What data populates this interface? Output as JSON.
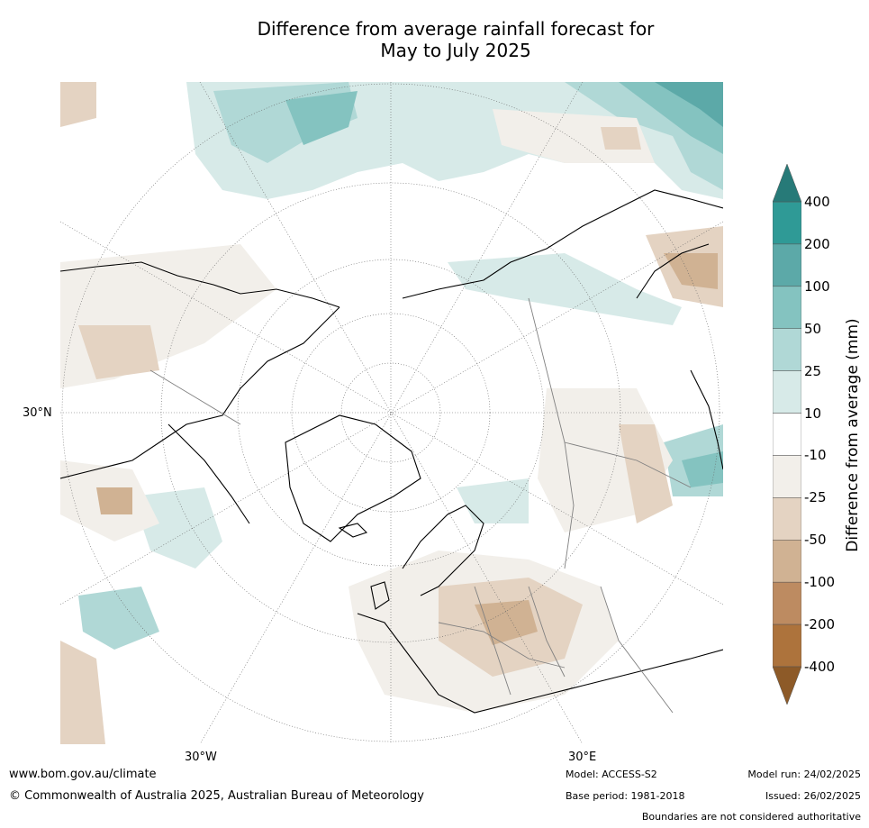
{
  "title": {
    "line1": "Difference from average rainfall forecast for",
    "line2": "May to July 2025"
  },
  "map": {
    "gridlabels": {
      "lat30": "30°N",
      "lon_w": "30°W",
      "lon_e": "30°E"
    },
    "colors": {
      "ocean_bg": "#ffffff",
      "coast": "#000000",
      "border": "#808080",
      "wet_10_25": "#d7eae8",
      "wet_25_50": "#b0d8d6",
      "wet_50_100": "#84c3c0",
      "wet_100_200": "#5ca9a8",
      "wet_200_400": "#2f9a96",
      "wet_over": "#277a78",
      "dry_10_25": "#f2efea",
      "dry_25_50": "#e4d3c2",
      "dry_50_100": "#d0b293",
      "dry_100_200": "#bd8b61",
      "dry_200_400": "#ad733c",
      "dry_under": "#8d5a28"
    }
  },
  "colorbar": {
    "title": "Difference from average (mm)",
    "ticks": [
      "400",
      "200",
      "100",
      "50",
      "25",
      "10",
      "-10",
      "-25",
      "-50",
      "-100",
      "-200",
      "-400"
    ],
    "bands": [
      "#2f9a96",
      "#5ca9a8",
      "#84c3c0",
      "#b0d8d6",
      "#d7eae8",
      "#ffffff",
      "#f2efea",
      "#e4d3c2",
      "#d0b293",
      "#bd8b61",
      "#ad733c"
    ],
    "arrow_top": "#277a78",
    "arrow_bottom": "#8d5a28"
  },
  "footer": {
    "url": "www.bom.gov.au/climate",
    "copyright": "© Commonwealth of Australia 2025, Australian Bureau of Meteorology",
    "model": "Model: ACCESS-S2",
    "base_period": "Base period: 1981-2018",
    "model_run": "Model run: 24/02/2025",
    "issued": "Issued: 26/02/2025",
    "disclaimer": "Boundaries are not considered authoritative"
  }
}
